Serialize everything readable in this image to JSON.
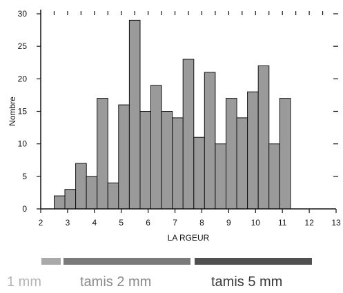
{
  "chart_data": {
    "type": "bar",
    "xlabel": "LA RGEUR",
    "ylabel": "Nombre",
    "xlim": [
      2,
      13
    ],
    "ylim": [
      0,
      30
    ],
    "x_ticks": [
      2,
      3,
      4,
      5,
      6,
      7,
      8,
      9,
      10,
      11,
      12,
      13
    ],
    "y_ticks": [
      0,
      5,
      10,
      15,
      20,
      25,
      30
    ],
    "bin_width": 0.4,
    "bins_left": [
      2.5,
      2.9,
      3.3,
      3.7,
      4.1,
      4.5,
      4.9,
      5.3,
      5.7,
      6.1,
      6.5,
      6.9,
      7.3,
      7.7,
      8.1,
      8.5,
      8.9,
      9.3,
      9.7,
      10.1,
      10.5,
      10.9,
      11.3
    ],
    "values": [
      2,
      3,
      7,
      5,
      17,
      4,
      16,
      29,
      15,
      19,
      15,
      14,
      23,
      11,
      21,
      10,
      17,
      14,
      18,
      22,
      10,
      17,
      0
    ],
    "bar_color": "#9a9a9a",
    "grid": false
  },
  "legend": {
    "items": [
      {
        "label": "1 mm",
        "color": "#a9a9a9",
        "text_color": "#b5b5b5"
      },
      {
        "label": "tamis 2 mm",
        "color": "#7a7a7a",
        "text_color": "#8a8a8a"
      },
      {
        "label": "tamis 5 mm",
        "color": "#505050",
        "text_color": "#3a3a3a"
      }
    ]
  }
}
